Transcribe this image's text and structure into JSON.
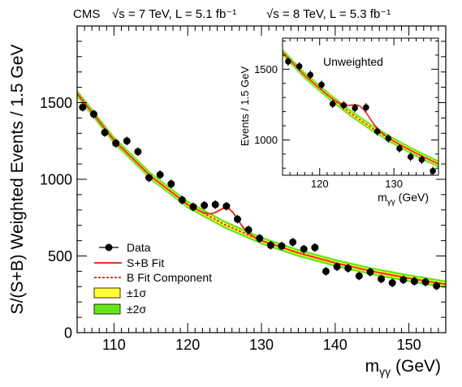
{
  "header": {
    "experiment": "CMS",
    "run1": "√s = 7 TeV, L = 5.1 fb⁻¹",
    "run2": "√s = 8 TeV, L = 5.3 fb⁻¹"
  },
  "colors": {
    "fit_sb": "#e8351e",
    "fit_b": "#e8351e",
    "band1": "#ffff33",
    "band2": "#66e61a",
    "points": "#000000"
  },
  "legend": {
    "data": "Data",
    "sb_fit": "S+B Fit",
    "b_fit": "B Fit Component",
    "band1": "±1σ",
    "band2": "±2σ"
  },
  "chart_data": [
    {
      "type": "scatter",
      "title": "",
      "xlabel": "mγγ (GeV)",
      "ylabel": "S/(S+B) Weighted Events / 1.5 GeV",
      "xlim": [
        105,
        155
      ],
      "ylim": [
        0,
        2000
      ],
      "x_ticks": [
        110,
        120,
        130,
        140,
        150
      ],
      "y_ticks": [
        0,
        500,
        1000,
        1500
      ],
      "grid": false,
      "legend_position": "bottom-left",
      "series": [
        {
          "name": "Data",
          "x": [
            105.75,
            107.25,
            108.75,
            110.25,
            111.75,
            113.25,
            114.75,
            116.25,
            117.75,
            119.25,
            120.75,
            122.25,
            123.75,
            125.25,
            126.75,
            128.25,
            129.75,
            131.25,
            132.75,
            134.25,
            135.75,
            137.25,
            138.75,
            140.25,
            141.75,
            143.25,
            144.75,
            146.25,
            147.75,
            149.25,
            150.75,
            152.25,
            153.75
          ],
          "y": [
            1470,
            1425,
            1305,
            1235,
            1250,
            1180,
            1010,
            1030,
            970,
            865,
            820,
            830,
            835,
            825,
            740,
            670,
            615,
            570,
            565,
            590,
            545,
            555,
            400,
            430,
            420,
            370,
            395,
            350,
            325,
            345,
            335,
            330,
            305
          ],
          "yerr": 28
        }
      ],
      "fit": {
        "bkg_x": [
          105,
          110,
          115,
          120,
          125,
          130,
          135,
          140,
          145,
          150,
          155
        ],
        "bkg_y": [
          1560,
          1255,
          1020,
          835,
          705,
          600,
          520,
          455,
          400,
          355,
          315
        ],
        "band1_halfwidth": 12,
        "band2_halfwidth": 25,
        "signal_mass": 125.5,
        "signal_amplitude": 115,
        "signal_sigma": 1.3
      }
    },
    {
      "type": "scatter",
      "title": "Unweighted",
      "xlabel": "mγγ (GeV)",
      "ylabel": "Events / 1.5 GeV",
      "xlim": [
        115,
        136
      ],
      "ylim": [
        750,
        1720
      ],
      "x_ticks": [
        120,
        130
      ],
      "y_ticks": [
        1000,
        1500
      ],
      "grid": false,
      "series": [
        {
          "name": "Data",
          "x": [
            115.75,
            117.25,
            118.75,
            120.25,
            121.75,
            123.25,
            124.75,
            126.25,
            127.75,
            129.25,
            130.75,
            132.25,
            133.75,
            135.25
          ],
          "y": [
            1555,
            1520,
            1460,
            1390,
            1255,
            1245,
            1225,
            1230,
            1060,
            1010,
            940,
            880,
            860,
            780
          ],
          "yerr": 30
        }
      ],
      "fit": {
        "bkg_x": [
          115,
          118,
          121,
          124,
          127,
          130,
          133,
          136
        ],
        "bkg_y": [
          1620,
          1455,
          1320,
          1195,
          1085,
          990,
          905,
          830
        ],
        "signal_mass": 125.5,
        "signal_amplitude": 95,
        "signal_sigma": 1.3
      }
    }
  ]
}
